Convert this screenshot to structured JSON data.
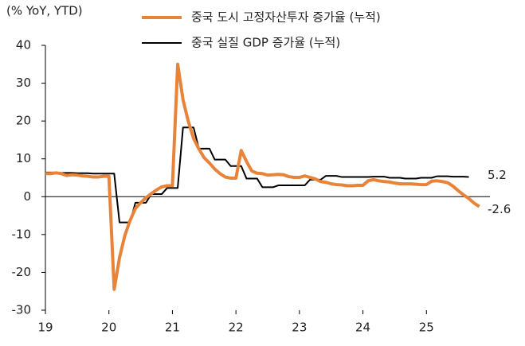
{
  "chart_data": {
    "type": "line",
    "y_axis_label": "(% YoY, YTD)",
    "x": [
      19,
      19.083,
      19.167,
      19.25,
      19.333,
      19.417,
      19.5,
      19.583,
      19.667,
      19.75,
      19.833,
      19.917,
      20,
      20.083,
      20.167,
      20.25,
      20.333,
      20.417,
      20.5,
      20.583,
      20.667,
      20.75,
      20.833,
      20.917,
      21,
      21.083,
      21.167,
      21.25,
      21.333,
      21.417,
      21.5,
      21.583,
      21.667,
      21.75,
      21.833,
      21.917,
      22,
      22.083,
      22.167,
      22.25,
      22.333,
      22.417,
      22.5,
      22.583,
      22.667,
      22.75,
      22.833,
      22.917,
      23,
      23.083,
      23.167,
      23.25,
      23.333,
      23.417,
      23.5,
      23.583,
      23.667,
      23.75,
      23.833,
      23.917,
      24,
      24.083,
      24.167,
      24.25,
      24.333,
      24.417,
      24.5,
      24.583,
      24.667,
      24.75,
      24.833,
      24.917,
      25,
      25.083,
      25.167,
      25.25,
      25.333,
      25.417,
      25.5,
      25.583,
      25.667,
      25.75,
      25.833
    ],
    "series": [
      {
        "name": "중국 도시 고정자산투자 증가율 (누적)",
        "color": "#e8843a",
        "width": 4,
        "values": [
          6.1,
          6.1,
          6.3,
          6.1,
          5.6,
          5.8,
          5.7,
          5.5,
          5.4,
          5.2,
          5.2,
          5.4,
          5.4,
          -24.5,
          -16.1,
          -10.3,
          -6.3,
          -3.1,
          -1.6,
          -0.3,
          0.8,
          1.8,
          2.6,
          2.9,
          2.9,
          35.0,
          25.6,
          19.9,
          15.4,
          12.6,
          10.3,
          8.9,
          7.3,
          6.1,
          5.2,
          4.9,
          4.9,
          12.2,
          9.3,
          6.8,
          6.2,
          6.1,
          5.7,
          5.8,
          5.9,
          5.8,
          5.3,
          5.1,
          5.1,
          5.5,
          5.1,
          4.7,
          4.0,
          3.8,
          3.4,
          3.2,
          3.1,
          2.9,
          2.9,
          3.0,
          3.0,
          4.2,
          4.5,
          4.2,
          4.0,
          3.9,
          3.6,
          3.4,
          3.4,
          3.4,
          3.3,
          3.2,
          3.2,
          4.1,
          4.2,
          4.0,
          3.7,
          2.8,
          1.6,
          0.5,
          -0.5,
          -1.7,
          -2.6
        ]
      },
      {
        "name": "중국 실질 GDP 증가율 (누적)",
        "color": "#000000",
        "width": 2,
        "values": [
          6.4,
          6.4,
          6.4,
          6.3,
          6.3,
          6.3,
          6.2,
          6.2,
          6.2,
          6.1,
          6.1,
          6.1,
          6.1,
          6.1,
          -6.8,
          -6.8,
          -6.8,
          -1.6,
          -1.6,
          -1.6,
          0.7,
          0.7,
          0.7,
          2.3,
          2.3,
          2.3,
          18.3,
          18.3,
          18.3,
          12.7,
          12.7,
          12.7,
          9.8,
          9.8,
          9.8,
          8.1,
          8.1,
          8.1,
          4.8,
          4.8,
          4.8,
          2.5,
          2.5,
          2.5,
          3.0,
          3.0,
          3.0,
          3.0,
          3.0,
          3.0,
          4.5,
          4.5,
          4.5,
          5.5,
          5.5,
          5.5,
          5.2,
          5.2,
          5.2,
          5.2,
          5.2,
          5.2,
          5.3,
          5.3,
          5.3,
          5.0,
          5.0,
          5.0,
          4.8,
          4.8,
          4.8,
          5.0,
          5.0,
          5.0,
          5.4,
          5.4,
          5.4,
          5.3,
          5.3,
          5.3,
          5.2,
          null,
          null
        ]
      }
    ],
    "ylim": [
      -30,
      40
    ],
    "yticks": [
      -30,
      -20,
      -10,
      0,
      10,
      20,
      30,
      40
    ],
    "xlim": [
      19,
      26
    ],
    "xticks": [
      19,
      20,
      21,
      22,
      23,
      24,
      25
    ],
    "end_labels": [
      {
        "series": 1,
        "index": 80
      },
      {
        "series": 0,
        "index": 82
      }
    ]
  }
}
